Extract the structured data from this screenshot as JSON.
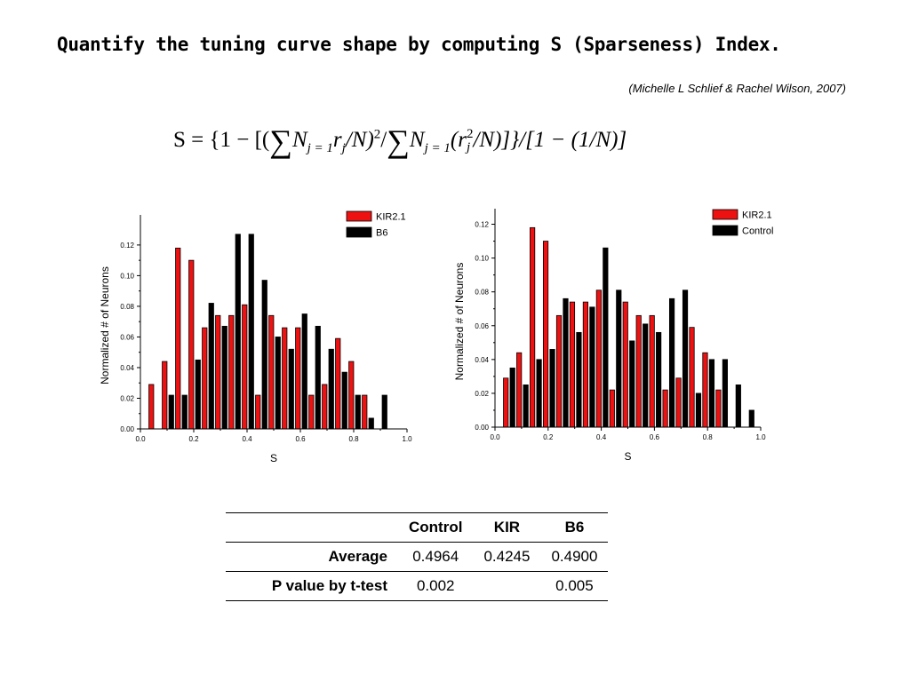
{
  "slide": {
    "title": "Quantify the tuning curve shape by computing S (Sparseness) Index.",
    "citation": "(Michelle L Schlief & Rachel Wilson, 2007)",
    "formula": {
      "lhs": "S = {1 − [(",
      "sum1": "∑",
      "t1": "N",
      "t1_sub": "j = 1",
      "t2": "r",
      "t2_sub": "j",
      "t3": "/N)",
      "t3_sup": "2",
      "t4": "/",
      "sum2": "∑",
      "t5": "N",
      "t5_sub": "j = 1",
      "t6": "(r",
      "t6_sup": "2",
      "t6_sub": "j",
      "t7": "/N)]}/[1 − (1/N)]"
    }
  },
  "colors": {
    "red": "#ee1111",
    "black": "#000000"
  },
  "chart_data": [
    {
      "type": "bar",
      "xlabel": "S",
      "ylabel": "Normalized # of Neurons",
      "xlim": [
        0,
        1
      ],
      "ylim": [
        0,
        0.135
      ],
      "xticks": [
        "0.0",
        "0.2",
        "0.4",
        "0.6",
        "0.8",
        "1.0"
      ],
      "yticks": [
        "0.00",
        "0.02",
        "0.04",
        "0.06",
        "0.08",
        "0.10",
        "0.12"
      ],
      "legend": "top-right",
      "x": [
        0.05,
        0.1,
        0.15,
        0.2,
        0.25,
        0.3,
        0.35,
        0.4,
        0.45,
        0.5,
        0.55,
        0.6,
        0.65,
        0.7,
        0.75,
        0.8,
        0.85,
        0.9,
        0.95
      ],
      "series": [
        {
          "name": "KIR2.1",
          "color": "#ee1111",
          "values": [
            0.029,
            0.044,
            0.118,
            0.11,
            0.066,
            0.074,
            0.074,
            0.081,
            0.022,
            0.074,
            0.066,
            0.066,
            0.022,
            0.029,
            0.059,
            0.044,
            0.022,
            0,
            0
          ]
        },
        {
          "name": "B6",
          "color": "#000000",
          "values": [
            0,
            0.022,
            0.022,
            0.045,
            0.082,
            0.067,
            0.127,
            0.127,
            0.097,
            0.06,
            0.052,
            0.075,
            0.067,
            0.052,
            0.037,
            0.022,
            0.007,
            0.022,
            0
          ]
        }
      ]
    },
    {
      "type": "bar",
      "xlabel": "S",
      "ylabel": "Normalized # of Neurons",
      "xlim": [
        0,
        1
      ],
      "ylim": [
        0,
        0.125
      ],
      "xticks": [
        "0.0",
        "0.2",
        "0.4",
        "0.6",
        "0.8",
        "1.0"
      ],
      "yticks": [
        "0.00",
        "0.02",
        "0.04",
        "0.06",
        "0.08",
        "0.10",
        "0.12"
      ],
      "legend": "top-right",
      "x": [
        0.05,
        0.1,
        0.15,
        0.2,
        0.25,
        0.3,
        0.35,
        0.4,
        0.45,
        0.5,
        0.55,
        0.6,
        0.65,
        0.7,
        0.75,
        0.8,
        0.85,
        0.9,
        0.95
      ],
      "series": [
        {
          "name": "KIR2.1",
          "color": "#ee1111",
          "values": [
            0.029,
            0.044,
            0.118,
            0.11,
            0.066,
            0.074,
            0.074,
            0.081,
            0.022,
            0.074,
            0.066,
            0.066,
            0.022,
            0.029,
            0.059,
            0.044,
            0.022,
            0,
            0
          ]
        },
        {
          "name": "Control",
          "color": "#000000",
          "values": [
            0.035,
            0.025,
            0.04,
            0.046,
            0.076,
            0.056,
            0.071,
            0.106,
            0.081,
            0.051,
            0.061,
            0.056,
            0.076,
            0.081,
            0.02,
            0.04,
            0.04,
            0.025,
            0.01
          ]
        }
      ]
    }
  ],
  "stats_table": {
    "headers": [
      "",
      "Control",
      "KIR",
      "B6"
    ],
    "rows": [
      {
        "label": "Average",
        "values": [
          "0.4964",
          "0.4245",
          "0.4900"
        ]
      },
      {
        "label": "P value by t-test",
        "values": [
          "0.002",
          "",
          "0.005"
        ]
      }
    ]
  }
}
